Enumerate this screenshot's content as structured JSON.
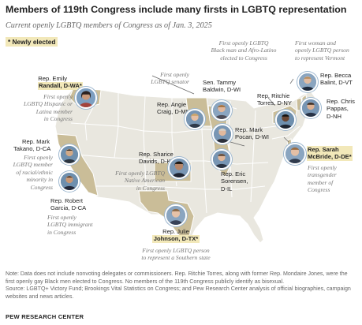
{
  "title": "Members of 119th Congress include many firsts in LGBTQ representation",
  "subtitle": "Current openly LGBTQ members of Congress as of Jan. 3, 2025",
  "legend": {
    "newly_elected": "* Newly elected"
  },
  "colors": {
    "land": "#e9e7df",
    "state_line": "#ffffff",
    "highlight_state": "#cabd98",
    "leader": "#666666",
    "photo_ring": "#9db7cf",
    "tag_bg": "#f2e8b9"
  },
  "members": {
    "randall": {
      "name_line1": "Rep. Emily",
      "name_line2": "Randall, D-WA*",
      "first": [
        "First openly",
        "LGBTQ Hispanic or",
        "Latina member",
        "in Congress"
      ],
      "new": true
    },
    "takano": {
      "name_line1": "Rep. Mark",
      "name_line2": "Takano, D-CA",
      "first": [
        "First openly",
        "LGBTQ member",
        "of racial/ethnic",
        "minority in",
        "Congress"
      ],
      "new": false
    },
    "garcia": {
      "name_line1": "Rep. Robert",
      "name_line2": "Garcia, D-CA",
      "first": [
        "First openly",
        "LGBTQ immigrant",
        "in Congress"
      ],
      "new": false
    },
    "baldwin": {
      "name_line1": "Sen. Tammy",
      "name_line2": "Baldwin, D-WI",
      "first": [
        "First openly",
        "LGBTQ senator"
      ],
      "new": false
    },
    "craig": {
      "name_line1": "Rep. Angie",
      "name_line2": "Craig, D-MN",
      "first": [],
      "new": false
    },
    "pocan": {
      "name_line1": "Rep. Mark",
      "name_line2": "Pocan, D-WI",
      "first": [],
      "new": false
    },
    "torres": {
      "name_line1": "Rep. Ritchie",
      "name_line2": "Torres, D-NY",
      "first": [
        "First openly LGBTQ",
        "Black man and Afro-Latino",
        "elected to Congress"
      ],
      "new": false
    },
    "balint": {
      "name_line1": "Rep. Becca",
      "name_line2": "Balint, D-VT",
      "first": [
        "First woman and",
        "openly LGBTQ person",
        "to represent Vermont"
      ],
      "new": false
    },
    "pappas": {
      "name_line1": "Rep. Chris",
      "name_line2": "Pappas,",
      "name_line3": "D-NH",
      "first": [],
      "new": false
    },
    "davids": {
      "name_line1": "Rep. Sharice",
      "name_line2": "Davids, D-KS",
      "first": [
        "First openly LGBTQ",
        "Native American",
        "in Congress"
      ],
      "new": false
    },
    "sorensen": {
      "name_line1": "Rep. Eric",
      "name_line2": "Sorensen,",
      "name_line3": "D-IL",
      "first": [],
      "new": false
    },
    "mcbride": {
      "name_line1": "Rep. Sarah",
      "name_line2": "McBride, D-DE*",
      "first": [
        "First openly",
        "transgender",
        "member of",
        "Congress"
      ],
      "new": true
    },
    "johnson": {
      "name_line1": "Rep. Julie",
      "name_line2": "Johnson, D-TX*",
      "first": [
        "First openly LGBTQ person",
        "to represent a Southern state"
      ],
      "new": true
    }
  },
  "note": "Note: Data does not include nonvoting delegates or commissioners. Rep. Ritchie Torres, along with former Rep. Mondaire Jones, were the first openly gay Black men elected to Congress. No members of the 119th Congress publicly identify as bisexual.",
  "source": "Source: LGBTQ+ Victory Fund; Brookings Vital Statistics on Congress; and Pew Research Center analysis of official biographies, campaign websites and news articles.",
  "org": "PEW RESEARCH CENTER"
}
